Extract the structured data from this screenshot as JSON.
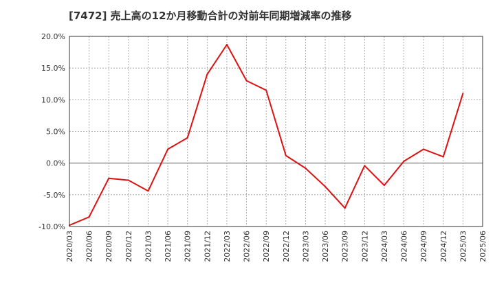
{
  "chart_data": {
    "type": "line",
    "title": "[7472]  売上高の12か月移動合計の対前年同期増減率の推移",
    "xlabel": "",
    "ylabel": "",
    "ylim": [
      -10,
      20
    ],
    "yticks": [
      "20.0%",
      "15.0%",
      "10.0%",
      "5.0%",
      "0.0%",
      "-5.0%",
      "-10.0%"
    ],
    "ytick_values": [
      20,
      15,
      10,
      5,
      0,
      -5,
      -10
    ],
    "categories": [
      "2020/03",
      "2020/06",
      "2020/09",
      "2020/12",
      "2021/03",
      "2021/06",
      "2021/09",
      "2021/12",
      "2022/03",
      "2022/06",
      "2022/09",
      "2022/12",
      "2023/03",
      "2023/06",
      "2023/09",
      "2023/12",
      "2024/03",
      "2024/06",
      "2024/09",
      "2024/12",
      "2025/03",
      "2025/06"
    ],
    "series": [
      {
        "name": "増減率",
        "color": "#dd1111",
        "values": [
          -9.8,
          -8.5,
          -2.4,
          -2.7,
          -4.4,
          2.2,
          4.0,
          14.0,
          18.7,
          13.0,
          11.5,
          1.2,
          -0.8,
          -3.7,
          -7.1,
          -0.4,
          -3.5,
          0.3,
          2.2,
          1.0,
          11.0,
          null
        ]
      }
    ],
    "grid": true
  }
}
